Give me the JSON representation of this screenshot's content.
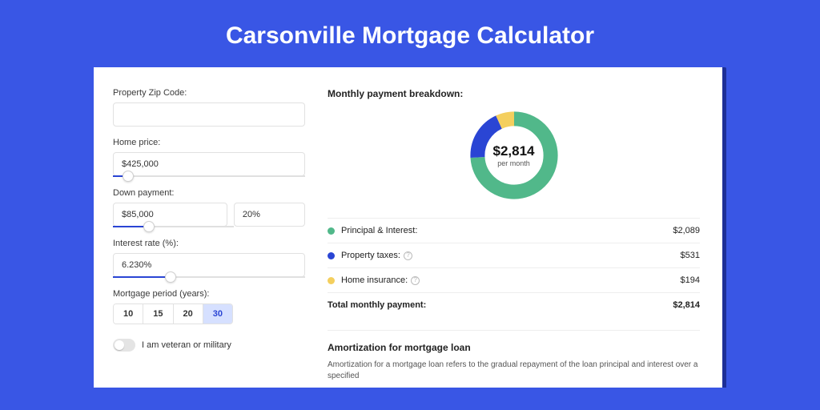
{
  "title": "Carsonville Mortgage Calculator",
  "colors": {
    "page_bg": "#3956e5",
    "panel_shadow": "#1d2f97",
    "accent": "#2a45d4"
  },
  "form": {
    "zip": {
      "label": "Property Zip Code:",
      "value": ""
    },
    "home_price": {
      "label": "Home price:",
      "value": "$425,000",
      "slider_pct": 8
    },
    "down_payment": {
      "label": "Down payment:",
      "value": "$85,000",
      "pct": "20%",
      "slider_pct": 20
    },
    "interest": {
      "label": "Interest rate (%):",
      "value": "6.230%",
      "slider_pct": 30
    },
    "period": {
      "label": "Mortgage period (years):",
      "options": [
        "10",
        "15",
        "20",
        "30"
      ],
      "selected": "30"
    },
    "veteran": {
      "label": "I am veteran or military",
      "on": false
    }
  },
  "breakdown": {
    "title": "Monthly payment breakdown:",
    "amount": "$2,814",
    "sub": "per month",
    "items": [
      {
        "label": "Principal & Interest:",
        "value": "$2,089",
        "color": "#51b88a",
        "info": false,
        "pct": 74
      },
      {
        "label": "Property taxes:",
        "value": "$531",
        "color": "#2a45d4",
        "info": true,
        "pct": 19
      },
      {
        "label": "Home insurance:",
        "value": "$194",
        "color": "#f4cf5e",
        "info": true,
        "pct": 7
      }
    ],
    "total_label": "Total monthly payment:",
    "total_value": "$2,814",
    "donut_stroke": 15
  },
  "amort": {
    "title": "Amortization for mortgage loan",
    "text": "Amortization for a mortgage loan refers to the gradual repayment of the loan principal and interest over a specified"
  }
}
